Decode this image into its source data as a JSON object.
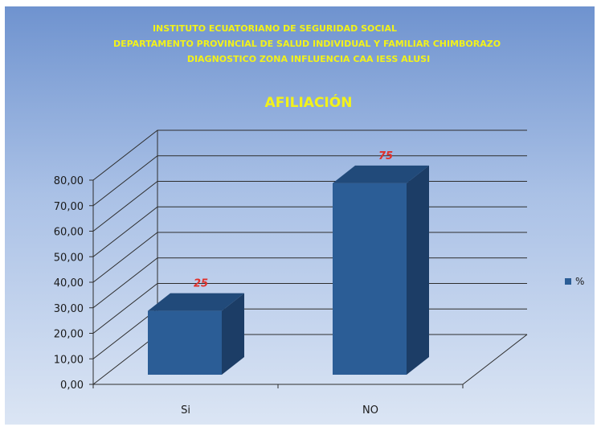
{
  "chart_data": {
    "type": "bar",
    "title_lines": [
      "INSTITUTO ECUATORIANO DE SEGURIDAD SOCIAL",
      "DEPARTAMENTO PROVINCIAL DE SALUD INDIVIDUAL Y FAMILIAR CHIMBORAZO",
      "DIAGNOSTICO ZONA INFLUENCIA CAA IESS ALUSI"
    ],
    "title": "AFILIACIÓN",
    "categories": [
      "Si",
      "NO"
    ],
    "series": [
      {
        "name": "%",
        "values": [
          25,
          75
        ],
        "data_labels": [
          "25",
          "75"
        ]
      }
    ],
    "y_ticks": [
      "0,00",
      "10,00",
      "20,00",
      "30,00",
      "40,00",
      "50,00",
      "60,00",
      "70,00",
      "80,00"
    ],
    "ylim": [
      0,
      80
    ],
    "grid": true,
    "legend_position": "right",
    "colors": {
      "bar_front": "#2b5d96",
      "bar_side": "#1c3d66",
      "bar_top": "#214a7a",
      "title": "#f2f21a",
      "data_label": "#e0302a",
      "legend_marker": "#2b5d96"
    }
  }
}
